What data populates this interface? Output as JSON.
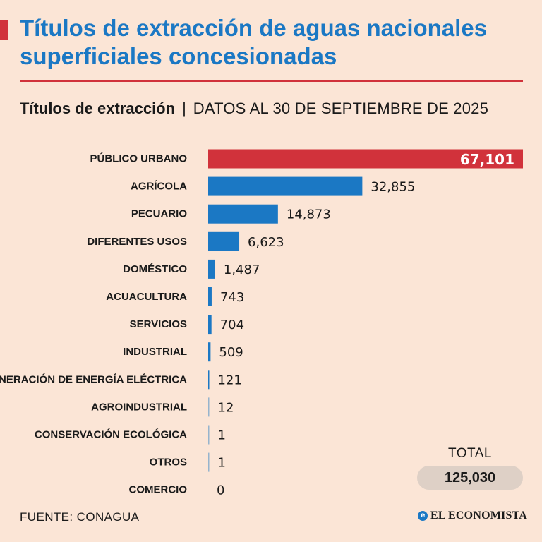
{
  "header": {
    "title": "Títulos de extracción de aguas nacionales superficiales concesionadas",
    "subtitle_main": "Títulos de extracción",
    "subtitle_separator": "|",
    "subtitle_date": "DATOS AL 30 DE SEPTIEMBRE DE 2025"
  },
  "colors": {
    "background": "#fbe5d6",
    "accent_red": "#d1323b",
    "bar_blue": "#1b78c4",
    "title_blue": "#1b78c4"
  },
  "chart_data": {
    "type": "bar",
    "orientation": "horizontal",
    "categories": [
      "PÚBLICO URBANO",
      "AGRÍCOLA",
      "PECUARIO",
      "DIFERENTES USOS",
      "DOMÉSTICO",
      "ACUACULTURA",
      "SERVICIOS",
      "INDUSTRIAL",
      "GENERACIÓN DE ENERGÍA ELÉCTRICA",
      "AGROINDUSTRIAL",
      "CONSERVACIÓN ECOLÓGICA",
      "OTROS",
      "COMERCIO"
    ],
    "values": [
      67101,
      32855,
      14873,
      6623,
      1487,
      743,
      704,
      509,
      121,
      12,
      1,
      1,
      0
    ],
    "value_labels": [
      "67,101",
      "32,855",
      "14,873",
      "6,623",
      "1,487",
      "743",
      "704",
      "509",
      "121",
      "12",
      "1",
      "1",
      "0"
    ],
    "highlight_index": 0,
    "xlim": [
      0,
      67101
    ],
    "title": "Títulos de extracción",
    "xlabel": "",
    "ylabel": ""
  },
  "total": {
    "label": "TOTAL",
    "value": "125,030"
  },
  "footer": {
    "source": "FUENTE: CONAGUA",
    "brand_icon": "e",
    "brand_name": "EL ECONOMISTA"
  }
}
